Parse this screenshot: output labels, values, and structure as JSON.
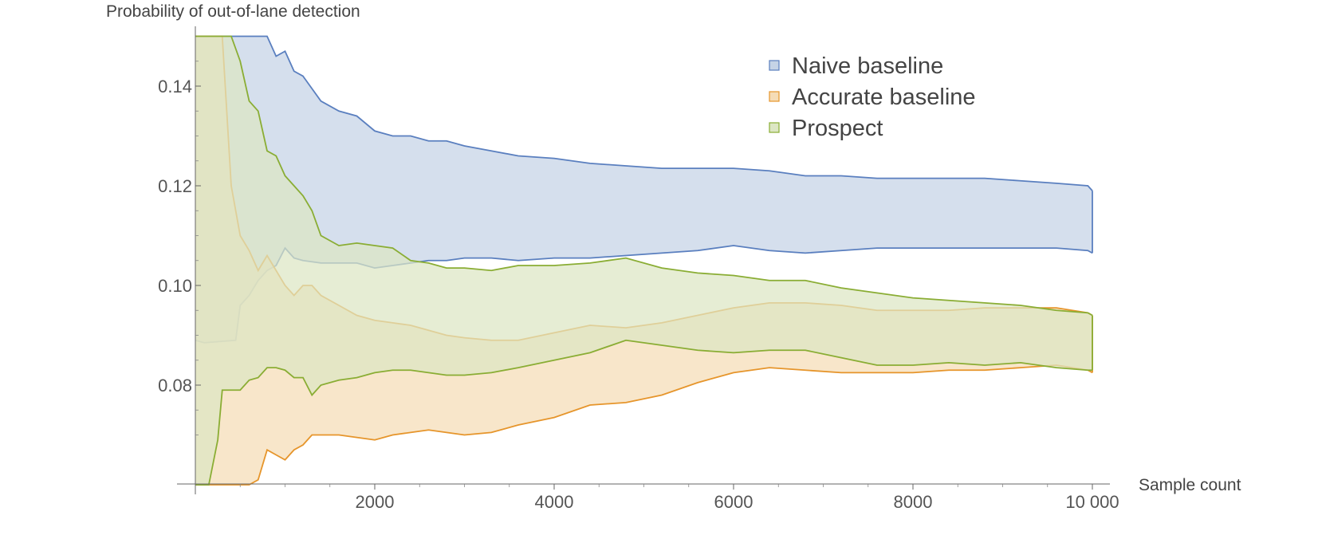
{
  "chart_data": {
    "type": "area",
    "title": "",
    "xlabel": "Sample count",
    "ylabel": "Probability of out-of-lane detection",
    "xlim": [
      0,
      10000
    ],
    "ylim": [
      0.06,
      0.15
    ],
    "x_ticks": [
      2000,
      4000,
      6000,
      8000,
      10000
    ],
    "x_tick_labels": [
      "2000",
      "4000",
      "6000",
      "8000",
      "10 000"
    ],
    "y_ticks": [
      0.08,
      0.1,
      0.12,
      0.14
    ],
    "y_tick_labels": [
      "0.08",
      "0.10",
      "0.12",
      "0.14"
    ],
    "grid": false,
    "legend_position": "top-right",
    "series": [
      {
        "name": "Naive baseline",
        "color": "#5a7fbf",
        "fill": "#c5d3e6",
        "x": [
          0,
          100,
          450,
          500,
          600,
          700,
          800,
          900,
          1000,
          1100,
          1200,
          1400,
          1600,
          1800,
          2000,
          2200,
          2400,
          2600,
          2800,
          3000,
          3300,
          3600,
          4000,
          4400,
          4800,
          5200,
          5600,
          6000,
          6400,
          6800,
          7200,
          7600,
          8000,
          8400,
          8800,
          9200,
          9600,
          9950,
          10000
        ],
        "lower": [
          0.089,
          0.0885,
          0.089,
          0.096,
          0.098,
          0.101,
          0.103,
          0.104,
          0.1075,
          0.1055,
          0.105,
          0.1045,
          0.1045,
          0.1045,
          0.1035,
          0.104,
          0.1045,
          0.105,
          0.105,
          0.1055,
          0.1055,
          0.105,
          0.1055,
          0.1055,
          0.106,
          0.1065,
          0.107,
          0.108,
          0.107,
          0.1065,
          0.107,
          0.1075,
          0.1075,
          0.1075,
          0.1075,
          0.1075,
          0.1075,
          0.107,
          0.1065
        ],
        "upper": [
          0.15,
          0.15,
          0.15,
          0.15,
          0.15,
          0.15,
          0.15,
          0.146,
          0.147,
          0.143,
          0.142,
          0.137,
          0.135,
          0.134,
          0.131,
          0.13,
          0.13,
          0.129,
          0.129,
          0.128,
          0.127,
          0.126,
          0.1255,
          0.1245,
          0.124,
          0.1235,
          0.1235,
          0.1235,
          0.123,
          0.122,
          0.122,
          0.1215,
          0.1215,
          0.1215,
          0.1215,
          0.121,
          0.1205,
          0.12,
          0.119
        ]
      },
      {
        "name": "Accurate baseline",
        "color": "#e6952b",
        "fill": "#f5dcb6",
        "x": [
          0,
          50,
          100,
          200,
          300,
          400,
          500,
          600,
          700,
          800,
          900,
          1000,
          1100,
          1200,
          1300,
          1400,
          1600,
          1800,
          2000,
          2200,
          2400,
          2600,
          2800,
          3000,
          3300,
          3600,
          4000,
          4400,
          4800,
          5200,
          5600,
          6000,
          6400,
          6800,
          7200,
          7600,
          8000,
          8400,
          8800,
          9200,
          9600,
          9950,
          10000
        ],
        "lower": [
          0.06,
          0.06,
          0.06,
          0.06,
          0.06,
          0.06,
          0.06,
          0.06,
          0.061,
          0.067,
          0.066,
          0.065,
          0.067,
          0.068,
          0.07,
          0.07,
          0.07,
          0.0695,
          0.069,
          0.07,
          0.0705,
          0.071,
          0.0705,
          0.07,
          0.0705,
          0.072,
          0.0735,
          0.076,
          0.0765,
          0.078,
          0.0805,
          0.0825,
          0.0835,
          0.083,
          0.0825,
          0.0825,
          0.0825,
          0.083,
          0.083,
          0.0835,
          0.084,
          0.083,
          0.0825
        ],
        "upper": [
          0.15,
          0.15,
          0.15,
          0.15,
          0.15,
          0.12,
          0.11,
          0.107,
          0.103,
          0.106,
          0.103,
          0.1,
          0.098,
          0.1,
          0.1,
          0.098,
          0.096,
          0.094,
          0.093,
          0.0925,
          0.092,
          0.091,
          0.09,
          0.0895,
          0.089,
          0.089,
          0.0905,
          0.092,
          0.0915,
          0.0925,
          0.094,
          0.0955,
          0.0965,
          0.0965,
          0.096,
          0.095,
          0.095,
          0.095,
          0.0955,
          0.0955,
          0.0955,
          0.0945,
          0.094
        ]
      },
      {
        "name": "Prospect",
        "color": "#8aad34",
        "fill": "#dce6c3",
        "x": [
          0,
          100,
          150,
          250,
          300,
          400,
          500,
          600,
          700,
          800,
          900,
          1000,
          1100,
          1200,
          1300,
          1400,
          1600,
          1800,
          2000,
          2200,
          2400,
          2600,
          2800,
          3000,
          3300,
          3600,
          4000,
          4400,
          4800,
          5200,
          5600,
          6000,
          6400,
          6800,
          7200,
          7600,
          8000,
          8400,
          8800,
          9200,
          9600,
          9950,
          10000
        ],
        "lower": [
          0.06,
          0.06,
          0.06,
          0.069,
          0.079,
          0.079,
          0.079,
          0.081,
          0.0815,
          0.0835,
          0.0835,
          0.083,
          0.0815,
          0.0815,
          0.078,
          0.08,
          0.081,
          0.0815,
          0.0825,
          0.083,
          0.083,
          0.0825,
          0.082,
          0.082,
          0.0825,
          0.0835,
          0.085,
          0.0865,
          0.089,
          0.088,
          0.087,
          0.0865,
          0.087,
          0.087,
          0.0855,
          0.084,
          0.084,
          0.0845,
          0.084,
          0.0845,
          0.0835,
          0.083,
          0.083
        ],
        "upper": [
          0.15,
          0.15,
          0.15,
          0.15,
          0.15,
          0.15,
          0.145,
          0.137,
          0.135,
          0.127,
          0.126,
          0.122,
          0.12,
          0.118,
          0.115,
          0.11,
          0.108,
          0.1085,
          0.108,
          0.1075,
          0.105,
          0.1045,
          0.1035,
          0.1035,
          0.103,
          0.104,
          0.104,
          0.1045,
          0.1055,
          0.1035,
          0.1025,
          0.102,
          0.101,
          0.101,
          0.0995,
          0.0985,
          0.0975,
          0.097,
          0.0965,
          0.096,
          0.095,
          0.0945,
          0.094
        ]
      }
    ]
  }
}
